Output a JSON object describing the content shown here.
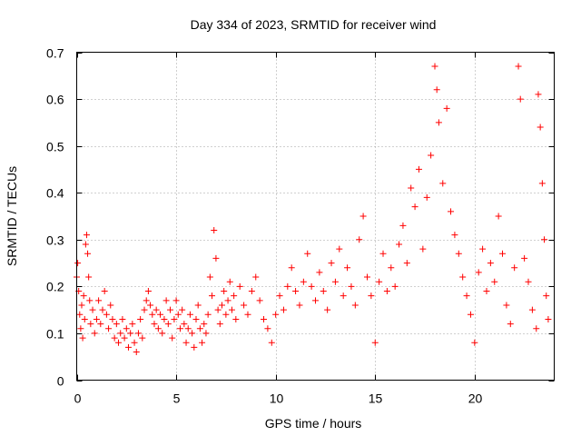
{
  "chart_data": {
    "type": "scatter",
    "title": "Day 334 of 2023, SRMTID for receiver wind",
    "xlabel": "GPS time / hours",
    "ylabel": "SRMTID / TECUs",
    "xlim": [
      0,
      24
    ],
    "ylim": [
      0,
      0.7
    ],
    "xticks": [
      0,
      5,
      10,
      15,
      20
    ],
    "xtick_labels": [
      "0",
      "5",
      "10",
      "15",
      "20"
    ],
    "yticks": [
      0,
      0.1,
      0.2,
      0.3,
      0.4,
      0.5,
      0.6,
      0.7
    ],
    "ytick_labels": [
      "0",
      "0.1",
      "0.2",
      "0.3",
      "0.4",
      "0.5",
      "0.6",
      "0.7"
    ],
    "grid": true,
    "marker": "+",
    "color": "#ff0000",
    "series": [
      {
        "name": "SRMTID",
        "points": [
          [
            0.0,
            0.22
          ],
          [
            0.05,
            0.25
          ],
          [
            0.1,
            0.19
          ],
          [
            0.15,
            0.14
          ],
          [
            0.2,
            0.11
          ],
          [
            0.25,
            0.16
          ],
          [
            0.3,
            0.09
          ],
          [
            0.35,
            0.18
          ],
          [
            0.4,
            0.13
          ],
          [
            0.45,
            0.29
          ],
          [
            0.5,
            0.31
          ],
          [
            0.55,
            0.27
          ],
          [
            0.6,
            0.22
          ],
          [
            0.65,
            0.17
          ],
          [
            0.7,
            0.12
          ],
          [
            0.8,
            0.15
          ],
          [
            0.9,
            0.1
          ],
          [
            1.0,
            0.13
          ],
          [
            1.1,
            0.17
          ],
          [
            1.2,
            0.12
          ],
          [
            1.3,
            0.15
          ],
          [
            1.4,
            0.19
          ],
          [
            1.5,
            0.14
          ],
          [
            1.6,
            0.11
          ],
          [
            1.7,
            0.16
          ],
          [
            1.8,
            0.13
          ],
          [
            1.9,
            0.09
          ],
          [
            2.0,
            0.12
          ],
          [
            2.1,
            0.08
          ],
          [
            2.2,
            0.1
          ],
          [
            2.3,
            0.13
          ],
          [
            2.4,
            0.09
          ],
          [
            2.5,
            0.11
          ],
          [
            2.6,
            0.07
          ],
          [
            2.7,
            0.1
          ],
          [
            2.8,
            0.12
          ],
          [
            2.9,
            0.08
          ],
          [
            3.0,
            0.06
          ],
          [
            3.1,
            0.1
          ],
          [
            3.2,
            0.13
          ],
          [
            3.3,
            0.09
          ],
          [
            3.4,
            0.15
          ],
          [
            3.5,
            0.17
          ],
          [
            3.6,
            0.19
          ],
          [
            3.7,
            0.16
          ],
          [
            3.8,
            0.14
          ],
          [
            3.9,
            0.12
          ],
          [
            4.0,
            0.15
          ],
          [
            4.1,
            0.11
          ],
          [
            4.2,
            0.14
          ],
          [
            4.3,
            0.1
          ],
          [
            4.4,
            0.13
          ],
          [
            4.5,
            0.17
          ],
          [
            4.6,
            0.12
          ],
          [
            4.7,
            0.15
          ],
          [
            4.8,
            0.09
          ],
          [
            4.9,
            0.13
          ],
          [
            5.0,
            0.17
          ],
          [
            5.1,
            0.14
          ],
          [
            5.2,
            0.11
          ],
          [
            5.3,
            0.15
          ],
          [
            5.4,
            0.12
          ],
          [
            5.5,
            0.08
          ],
          [
            5.6,
            0.11
          ],
          [
            5.7,
            0.14
          ],
          [
            5.8,
            0.1
          ],
          [
            5.9,
            0.07
          ],
          [
            6.0,
            0.13
          ],
          [
            6.1,
            0.16
          ],
          [
            6.2,
            0.11
          ],
          [
            6.3,
            0.08
          ],
          [
            6.4,
            0.12
          ],
          [
            6.5,
            0.1
          ],
          [
            6.6,
            0.14
          ],
          [
            6.7,
            0.22
          ],
          [
            6.8,
            0.18
          ],
          [
            6.9,
            0.32
          ],
          [
            7.0,
            0.26
          ],
          [
            7.1,
            0.15
          ],
          [
            7.2,
            0.12
          ],
          [
            7.3,
            0.16
          ],
          [
            7.4,
            0.19
          ],
          [
            7.5,
            0.14
          ],
          [
            7.6,
            0.17
          ],
          [
            7.7,
            0.21
          ],
          [
            7.8,
            0.15
          ],
          [
            7.9,
            0.18
          ],
          [
            8.0,
            0.13
          ],
          [
            8.2,
            0.2
          ],
          [
            8.4,
            0.16
          ],
          [
            8.6,
            0.14
          ],
          [
            8.8,
            0.19
          ],
          [
            9.0,
            0.22
          ],
          [
            9.2,
            0.17
          ],
          [
            9.4,
            0.13
          ],
          [
            9.6,
            0.11
          ],
          [
            9.8,
            0.08
          ],
          [
            10.0,
            0.14
          ],
          [
            10.2,
            0.18
          ],
          [
            10.4,
            0.15
          ],
          [
            10.6,
            0.2
          ],
          [
            10.8,
            0.24
          ],
          [
            11.0,
            0.19
          ],
          [
            11.2,
            0.16
          ],
          [
            11.4,
            0.21
          ],
          [
            11.6,
            0.27
          ],
          [
            11.8,
            0.2
          ],
          [
            12.0,
            0.17
          ],
          [
            12.2,
            0.23
          ],
          [
            12.4,
            0.19
          ],
          [
            12.6,
            0.15
          ],
          [
            12.8,
            0.25
          ],
          [
            13.0,
            0.21
          ],
          [
            13.2,
            0.28
          ],
          [
            13.4,
            0.18
          ],
          [
            13.6,
            0.24
          ],
          [
            13.8,
            0.2
          ],
          [
            14.0,
            0.16
          ],
          [
            14.2,
            0.3
          ],
          [
            14.4,
            0.35
          ],
          [
            14.6,
            0.22
          ],
          [
            14.8,
            0.18
          ],
          [
            15.0,
            0.08
          ],
          [
            15.2,
            0.21
          ],
          [
            15.4,
            0.27
          ],
          [
            15.6,
            0.19
          ],
          [
            15.8,
            0.24
          ],
          [
            16.0,
            0.2
          ],
          [
            16.2,
            0.29
          ],
          [
            16.4,
            0.33
          ],
          [
            16.6,
            0.25
          ],
          [
            16.8,
            0.41
          ],
          [
            17.0,
            0.37
          ],
          [
            17.2,
            0.45
          ],
          [
            17.4,
            0.28
          ],
          [
            17.6,
            0.39
          ],
          [
            17.8,
            0.48
          ],
          [
            18.0,
            0.67
          ],
          [
            18.1,
            0.62
          ],
          [
            18.2,
            0.55
          ],
          [
            18.4,
            0.42
          ],
          [
            18.6,
            0.58
          ],
          [
            18.8,
            0.36
          ],
          [
            19.0,
            0.31
          ],
          [
            19.2,
            0.27
          ],
          [
            19.4,
            0.22
          ],
          [
            19.6,
            0.18
          ],
          [
            19.8,
            0.14
          ],
          [
            20.0,
            0.08
          ],
          [
            20.2,
            0.23
          ],
          [
            20.4,
            0.28
          ],
          [
            20.6,
            0.19
          ],
          [
            20.8,
            0.25
          ],
          [
            21.0,
            0.21
          ],
          [
            21.2,
            0.35
          ],
          [
            21.4,
            0.27
          ],
          [
            21.6,
            0.16
          ],
          [
            21.8,
            0.12
          ],
          [
            22.0,
            0.24
          ],
          [
            22.2,
            0.67
          ],
          [
            22.3,
            0.6
          ],
          [
            22.5,
            0.26
          ],
          [
            22.7,
            0.21
          ],
          [
            22.9,
            0.15
          ],
          [
            23.1,
            0.11
          ],
          [
            23.2,
            0.61
          ],
          [
            23.3,
            0.54
          ],
          [
            23.4,
            0.42
          ],
          [
            23.5,
            0.3
          ],
          [
            23.6,
            0.18
          ],
          [
            23.7,
            0.13
          ]
        ]
      }
    ]
  }
}
